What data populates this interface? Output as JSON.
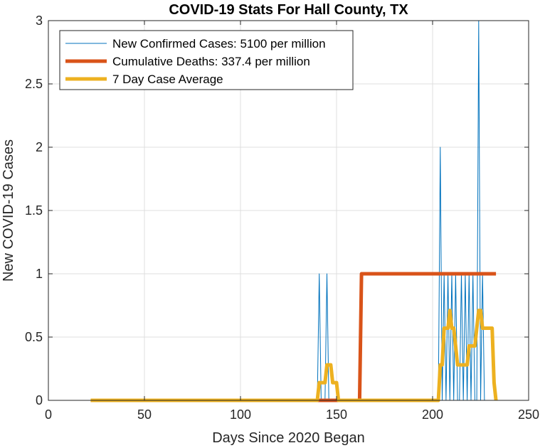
{
  "chart_data": {
    "type": "line",
    "title": "COVID-19 Stats For Hall County, TX",
    "xlabel": "Days Since 2020 Began",
    "ylabel": "New COVID-19 Cases",
    "xlim": [
      0,
      250
    ],
    "ylim": [
      0,
      3
    ],
    "xticks": [
      0,
      50,
      100,
      150,
      200,
      250
    ],
    "yticks": [
      0,
      0.5,
      1,
      1.5,
      2,
      2.5,
      3
    ],
    "xtick_labels": [
      "0",
      "50",
      "100",
      "150",
      "200",
      "250"
    ],
    "ytick_labels": [
      "0",
      "0.5",
      "1",
      "1.5",
      "2",
      "2.5",
      "3"
    ],
    "grid": true,
    "legend_position": "top-left",
    "series": [
      {
        "name": "New Confirmed Cases: 5100 per million",
        "color": "#0072BD",
        "style": "thin",
        "x": [
          22,
          140,
          141,
          142,
          143,
          144,
          145,
          146,
          147,
          148,
          149,
          150,
          151,
          152,
          160,
          170,
          180,
          190,
          200,
          202,
          203,
          204,
          205,
          206,
          207,
          208,
          209,
          210,
          211,
          212,
          213,
          214,
          215,
          216,
          217,
          218,
          219,
          220,
          221,
          222,
          223,
          224,
          225,
          226,
          227,
          228,
          229,
          230,
          231,
          232,
          233
        ],
        "y": [
          0,
          0,
          1,
          0,
          0,
          0,
          1,
          0,
          0,
          0,
          0,
          0,
          0,
          0,
          0,
          0,
          0,
          0,
          0,
          0,
          0,
          2,
          0,
          1,
          0,
          1,
          0,
          1,
          0,
          1,
          0,
          0,
          1,
          0,
          1,
          0,
          1,
          0,
          1,
          0,
          0,
          3,
          0,
          1,
          0,
          0,
          0,
          0,
          0,
          0,
          0
        ]
      },
      {
        "name": "Cumulative Deaths: 337.4 per million",
        "color": "#D95319",
        "style": "thick",
        "x": [
          140,
          141,
          150,
          151,
          162,
          163,
          233
        ],
        "y": [
          0,
          0,
          0,
          0,
          0,
          1,
          1
        ]
      },
      {
        "name": "7 Day Case Average",
        "color": "#EDB120",
        "style": "thick",
        "x": [
          22,
          140,
          141,
          144,
          145,
          147,
          148,
          150,
          151,
          203,
          204,
          205,
          206,
          208,
          209,
          210,
          211,
          212,
          213,
          214,
          218,
          219,
          220,
          221,
          222,
          223,
          224,
          225,
          226,
          227,
          231,
          232,
          233
        ],
        "y": [
          0,
          0,
          0.14,
          0.14,
          0.28,
          0.28,
          0.14,
          0.14,
          0,
          0,
          0.28,
          0.28,
          0.57,
          0.57,
          0.71,
          0.57,
          0.57,
          0.43,
          0.28,
          0.28,
          0.28,
          0.43,
          0.43,
          0.43,
          0.43,
          0.57,
          0.71,
          0.71,
          0.57,
          0.57,
          0.57,
          0.14,
          0
        ]
      }
    ]
  }
}
